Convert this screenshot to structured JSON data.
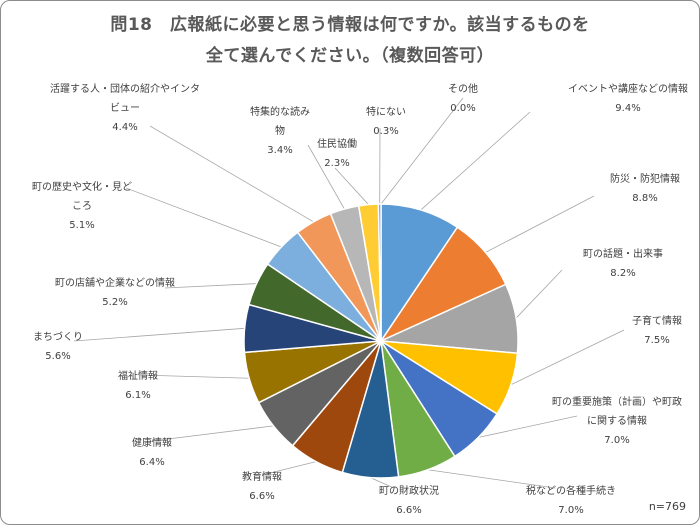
{
  "chart_data": {
    "type": "pie",
    "title_lines": [
      "問18　広報紙に必要と思う情報は何ですか。該当するものを",
      "全て選んでください。（複数回答可）"
    ],
    "n_label": "n=769",
    "unit": "%",
    "slices": [
      {
        "label": "イベントや講座などの情報",
        "value": 9.4,
        "color": "#5b9bd5"
      },
      {
        "label": "防災・防犯情報",
        "value": 8.8,
        "color": "#ed7d31"
      },
      {
        "label": "町の話題・出来事",
        "value": 8.2,
        "color": "#a5a5a5"
      },
      {
        "label": "子育て情報",
        "value": 7.5,
        "color": "#ffc000"
      },
      {
        "label": "町の重要施策（計画）や町政に関する情報",
        "value": 7.0,
        "color": "#4472c4"
      },
      {
        "label": "税などの各種手続き",
        "value": 7.0,
        "color": "#70ad47"
      },
      {
        "label": "町の財政状況",
        "value": 6.6,
        "color": "#255e91"
      },
      {
        "label": "教育情報",
        "value": 6.6,
        "color": "#9e480e"
      },
      {
        "label": "健康情報",
        "value": 6.4,
        "color": "#636363"
      },
      {
        "label": "福祉情報",
        "value": 6.1,
        "color": "#997300"
      },
      {
        "label": "まちづくり",
        "value": 5.6,
        "color": "#264478"
      },
      {
        "label": "町の店舗や企業などの情報",
        "value": 5.2,
        "color": "#43682b"
      },
      {
        "label": "町の歴史や文化・見どころ",
        "value": 5.1,
        "color": "#7cafdd"
      },
      {
        "label": "活躍する人・団体の紹介やインタビュー",
        "value": 4.4,
        "color": "#f1975a"
      },
      {
        "label": "特集的な読み物",
        "value": 3.4,
        "color": "#b7b7b7"
      },
      {
        "label": "住民協働",
        "value": 2.3,
        "color": "#ffcd33"
      },
      {
        "label": "特にない",
        "value": 0.3,
        "color": "#698ed0"
      },
      {
        "label": "その他",
        "value": 0.0,
        "color": "#8cc168"
      }
    ],
    "label_lines": [
      [
        "イベントや講座などの情報"
      ],
      [
        "防災・防犯情報"
      ],
      [
        "町の話題・出来事"
      ],
      [
        "子育て情報"
      ],
      [
        "町の重要施策（計画）や町政",
        "に関する情報"
      ],
      [
        "税などの各種手続き"
      ],
      [
        "町の財政状況"
      ],
      [
        "教育情報"
      ],
      [
        "健康情報"
      ],
      [
        "福祉情報"
      ],
      [
        "まちづくり"
      ],
      [
        "町の店舗や企業などの情報"
      ],
      [
        "町の歴史や文化・見ど",
        "ころ"
      ],
      [
        "活躍する人・団体の紹介やインタ",
        "ビュー"
      ],
      [
        "特集的な読み",
        "物"
      ],
      [
        "住民協働"
      ],
      [
        "特にない"
      ],
      [
        "その他"
      ]
    ],
    "value_labels": [
      "9.4%",
      "8.8%",
      "8.2%",
      "7.5%",
      "7.0%",
      "7.0%",
      "6.6%",
      "6.6%",
      "6.4%",
      "6.1%",
      "5.6%",
      "5.2%",
      "5.1%",
      "4.4%",
      "3.4%",
      "2.3%",
      "0.3%",
      "0.0%"
    ],
    "legend": "none"
  }
}
